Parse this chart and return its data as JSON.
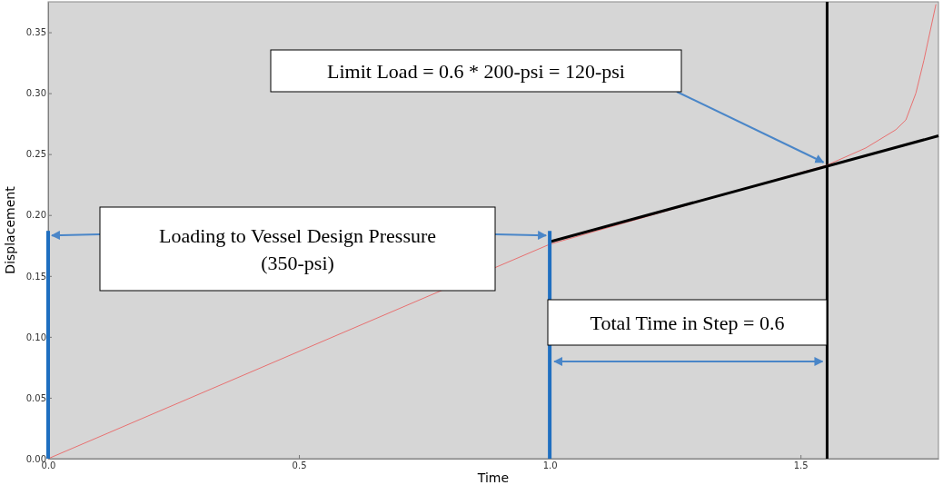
{
  "chart_data": {
    "type": "line",
    "xlabel": "Time",
    "ylabel": "Displacement",
    "xlim": [
      0,
      1.775
    ],
    "ylim": [
      0,
      0.375
    ],
    "xticks": [
      {
        "value": 0,
        "label": "0.0"
      },
      {
        "value": 0.5,
        "label": "0.5"
      },
      {
        "value": 1,
        "label": "1.0"
      },
      {
        "value": 1.5,
        "label": "1.5"
      }
    ],
    "yticks": [
      {
        "value": 0,
        "label": "0.00"
      },
      {
        "value": 0.05,
        "label": "0.05"
      },
      {
        "value": 0.1,
        "label": "0.10"
      },
      {
        "value": 0.15,
        "label": "0.15"
      },
      {
        "value": 0.2,
        "label": "0.20"
      },
      {
        "value": 0.25,
        "label": "0.25"
      },
      {
        "value": 0.3,
        "label": "0.30"
      },
      {
        "value": 0.35,
        "label": "0.35"
      }
    ],
    "grid": false,
    "marker": "none",
    "line_style": "solid",
    "series": [
      {
        "color": "#e87070",
        "x": [
          0,
          1.0,
          1.553,
          1.63,
          1.69,
          1.71,
          1.73,
          1.746,
          1.77
        ],
        "values": [
          0,
          0.176,
          0.241,
          0.255,
          0.27,
          0.278,
          0.3,
          0.327,
          0.373
        ]
      },
      {
        "color": "#000000",
        "x": [
          1.0,
          1.775
        ],
        "values": [
          0.178,
          0.265
        ]
      },
      {
        "color": "#1f6fc0",
        "x": [
          0,
          0
        ],
        "values": [
          0,
          0.187
        ]
      },
      {
        "color": "#1f6fc0",
        "x": [
          1.0,
          1.0
        ],
        "values": [
          0,
          0.187
        ]
      }
    ],
    "ref_lines": [
      {
        "axis": "x",
        "value": 1.553,
        "color": "#000000"
      }
    ],
    "annotations": [
      "Limit Load = 0.6 * 200-psi = 120-psi",
      "Loading to Vessel Design Pressure\n(350-psi)",
      "Total Time in Step = 0.6"
    ]
  }
}
